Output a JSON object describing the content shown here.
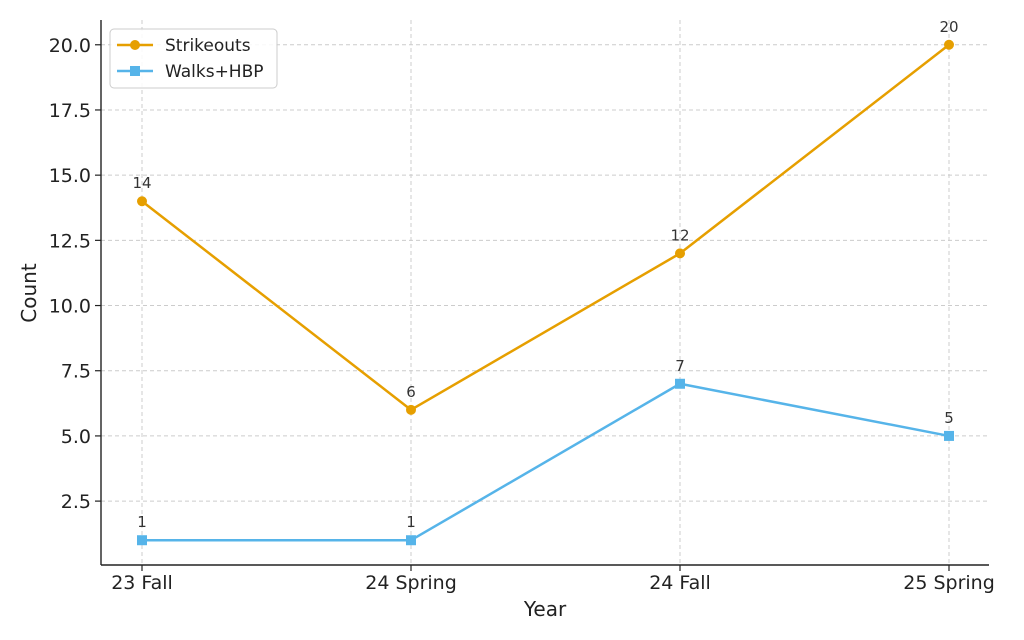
{
  "chart_data": {
    "type": "line",
    "title": "",
    "xlabel": "Year",
    "ylabel": "Count",
    "categories": [
      "23 Fall",
      "24 Spring",
      "24 Fall",
      "25 Spring"
    ],
    "series": [
      {
        "name": "Strikeouts",
        "values": [
          14,
          6,
          12,
          20
        ],
        "color": "#E69F00",
        "marker": "circle"
      },
      {
        "name": "Walks+HBP",
        "values": [
          1,
          1,
          7,
          5
        ],
        "color": "#56B4E9",
        "marker": "square"
      }
    ],
    "ylim": [
      0.05,
      20.95
    ],
    "yticks": [
      "2.5",
      "5.0",
      "7.5",
      "10.0",
      "12.5",
      "15.0",
      "17.5",
      "20.0"
    ],
    "ytick_values": [
      2.5,
      5,
      7.5,
      10,
      12.5,
      15,
      17.5,
      20
    ],
    "grid": true,
    "legend": "top-left",
    "data_labels": true
  }
}
